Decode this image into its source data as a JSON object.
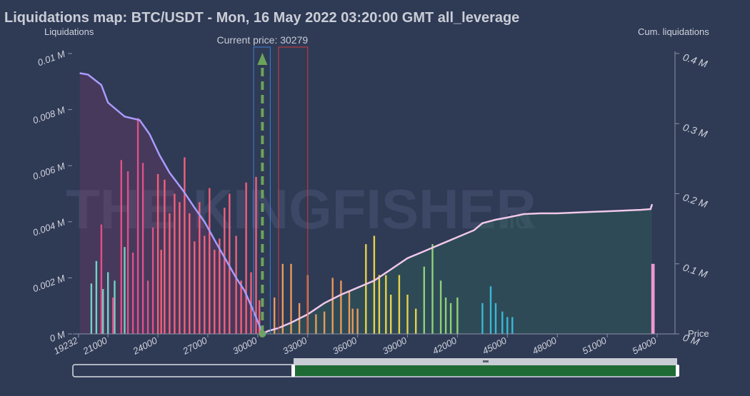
{
  "title": "Liquidations map: BTC/USDT - Mon, 16 May 2022 03:20:00 GMT all_leverage",
  "current_price_label": "Current price: 30279",
  "watermark": "THE KINGFISHER",
  "watermark_suffix": ".io",
  "colors": {
    "background": "#2f3a55",
    "cum_line": "#a99cff",
    "cum_line_right": "#f0c8e8",
    "price_line": "#6aa45a",
    "left_box": "#3b82d8",
    "right_box": "#d33b3b",
    "slider_fill": "#1f6b35"
  },
  "chart_data": {
    "type": "bar",
    "title": "Liquidations map: BTC/USDT - Mon, 16 May 2022 03:20:00 GMT all_leverage",
    "xlabel": "Price",
    "ylabel": "Liquidations",
    "y2label": "Cum. liquidations",
    "xlim": [
      19232,
      54000
    ],
    "ylim": [
      0,
      0.01
    ],
    "y2lim": [
      0,
      0.4
    ],
    "x_ticks": [
      "19232",
      "21000",
      "24000",
      "27000",
      "30000",
      "33000",
      "36000",
      "39000",
      "42000",
      "45000",
      "48000",
      "51000",
      "54000"
    ],
    "y_ticks": [
      "0 M",
      "0.002 M",
      "0.004 M",
      "0.006 M",
      "0.008 M",
      "0.01 M"
    ],
    "y2_ticks": [
      "0 M",
      "0.1 M",
      "0.2 M",
      "0.3 M",
      "0.4 M"
    ],
    "current_price": 30279,
    "left_box_range": [
      29750,
      30750
    ],
    "right_box_range": [
      31250,
      33000
    ],
    "series": [
      {
        "values": [
          [
            20000,
            0.0018
          ],
          [
            20300,
            0.0026
          ],
          [
            20700,
            0.0016
          ],
          [
            21000,
            0.0022
          ],
          [
            21400,
            0.0019
          ],
          [
            22000,
            0.0031
          ]
        ]
      },
      {
        "values": [
          [
            20600,
            0.0039
          ],
          [
            21300,
            0.0013
          ],
          [
            21800,
            0.0062
          ],
          [
            22200,
            0.0058
          ],
          [
            22500,
            0.0029
          ],
          [
            22800,
            0.0077
          ],
          [
            23100,
            0.0061
          ],
          [
            23400,
            0.0019
          ],
          [
            23700,
            0.0038
          ]
        ]
      },
      {
        "values": [
          [
            24000,
            0.0057
          ],
          [
            24200,
            0.003
          ],
          [
            24400,
            0.0055
          ],
          [
            24700,
            0.0043
          ],
          [
            25000,
            0.005
          ],
          [
            25300,
            0.0047
          ],
          [
            25600,
            0.0063
          ],
          [
            25900,
            0.0043
          ],
          [
            26200,
            0.0033
          ],
          [
            26500,
            0.0047
          ],
          [
            26800,
            0.0035
          ],
          [
            27100,
            0.0052
          ],
          [
            27400,
            0.003
          ],
          [
            27700,
            0.0034
          ],
          [
            28000,
            0.0045
          ],
          [
            28300,
            0.005
          ],
          [
            28700,
            0.0035
          ],
          [
            29000,
            0.0019
          ],
          [
            29300,
            0.0054
          ],
          [
            29600,
            0.0022
          ],
          [
            29900,
            0.0056
          ],
          [
            30100,
            0.0012
          ]
        ]
      },
      {
        "values": [
          [
            31000,
            0.0013
          ],
          [
            31500,
            0.0025
          ],
          [
            32000,
            0.0025
          ],
          [
            32500,
            0.0011
          ],
          [
            33000,
            0.0021
          ],
          [
            33500,
            0.0007
          ],
          [
            34000,
            0.0008
          ],
          [
            34500,
            0.002
          ],
          [
            35000,
            0.0019
          ],
          [
            35500,
            0.0015
          ],
          [
            35700,
            0.0009
          ],
          [
            36000,
            0.0009
          ]
        ]
      },
      {
        "values": [
          [
            36500,
            0.0032
          ],
          [
            37000,
            0.0035
          ],
          [
            37300,
            0.0021
          ],
          [
            37700,
            0.0021
          ],
          [
            38000,
            0.0014
          ],
          [
            38500,
            0.0021
          ],
          [
            39000,
            0.0014
          ],
          [
            39500,
            0.0009
          ]
        ]
      },
      {
        "values": [
          [
            40000,
            0.0024
          ],
          [
            40500,
            0.0032
          ],
          [
            41000,
            0.0019
          ],
          [
            41300,
            0.0013
          ],
          [
            41600,
            0.0011
          ],
          [
            42000,
            0.0013
          ]
        ]
      },
      {
        "values": [
          [
            43500,
            0.0011
          ],
          [
            44000,
            0.0017
          ],
          [
            44300,
            0.0011
          ],
          [
            44700,
            0.0008
          ],
          [
            45000,
            0.0006
          ],
          [
            45300,
            0.0006
          ]
        ]
      },
      {
        "values": [
          [
            53700,
            0.0025
          ],
          [
            53800,
            0.0025
          ]
        ]
      }
    ],
    "cumulative_long": [
      [
        19300,
        0.372
      ],
      [
        19800,
        0.37
      ],
      [
        20600,
        0.355
      ],
      [
        21000,
        0.33
      ],
      [
        22000,
        0.31
      ],
      [
        22900,
        0.305
      ],
      [
        23500,
        0.285
      ],
      [
        24100,
        0.255
      ],
      [
        24700,
        0.23
      ],
      [
        25500,
        0.205
      ],
      [
        26200,
        0.18
      ],
      [
        26800,
        0.16
      ],
      [
        27500,
        0.13
      ],
      [
        28100,
        0.105
      ],
      [
        28700,
        0.08
      ],
      [
        29200,
        0.062
      ],
      [
        29700,
        0.035
      ],
      [
        30100,
        0.012
      ],
      [
        30279,
        0
      ]
    ],
    "cumulative_short": [
      [
        30279,
        0
      ],
      [
        30600,
        0.004
      ],
      [
        31200,
        0.008
      ],
      [
        32000,
        0.016
      ],
      [
        33000,
        0.028
      ],
      [
        34000,
        0.044
      ],
      [
        35000,
        0.056
      ],
      [
        36000,
        0.066
      ],
      [
        37000,
        0.076
      ],
      [
        38000,
        0.092
      ],
      [
        39000,
        0.108
      ],
      [
        40000,
        0.118
      ],
      [
        41000,
        0.128
      ],
      [
        42000,
        0.138
      ],
      [
        43000,
        0.148
      ],
      [
        43500,
        0.158
      ],
      [
        44300,
        0.163
      ],
      [
        45000,
        0.166
      ],
      [
        46000,
        0.171
      ],
      [
        47000,
        0.172
      ],
      [
        48000,
        0.172
      ],
      [
        49000,
        0.173
      ],
      [
        50000,
        0.174
      ],
      [
        51000,
        0.175
      ],
      [
        52000,
        0.176
      ],
      [
        53000,
        0.177
      ],
      [
        53600,
        0.178
      ],
      [
        53700,
        0.185
      ]
    ]
  }
}
